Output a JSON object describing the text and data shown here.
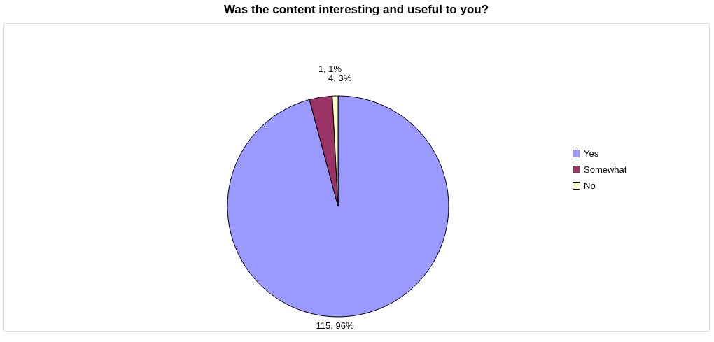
{
  "chart_data": {
    "type": "pie",
    "title": "Was the content interesting and useful to you?",
    "categories": [
      "Yes",
      "Somewhat",
      "No"
    ],
    "values": [
      115,
      4,
      1
    ],
    "colors": [
      "#9999ff",
      "#993366",
      "#ffffcc"
    ],
    "value_labels": [
      "115, 96%",
      "4, 3%",
      "1, 1%"
    ],
    "legend": "right"
  }
}
